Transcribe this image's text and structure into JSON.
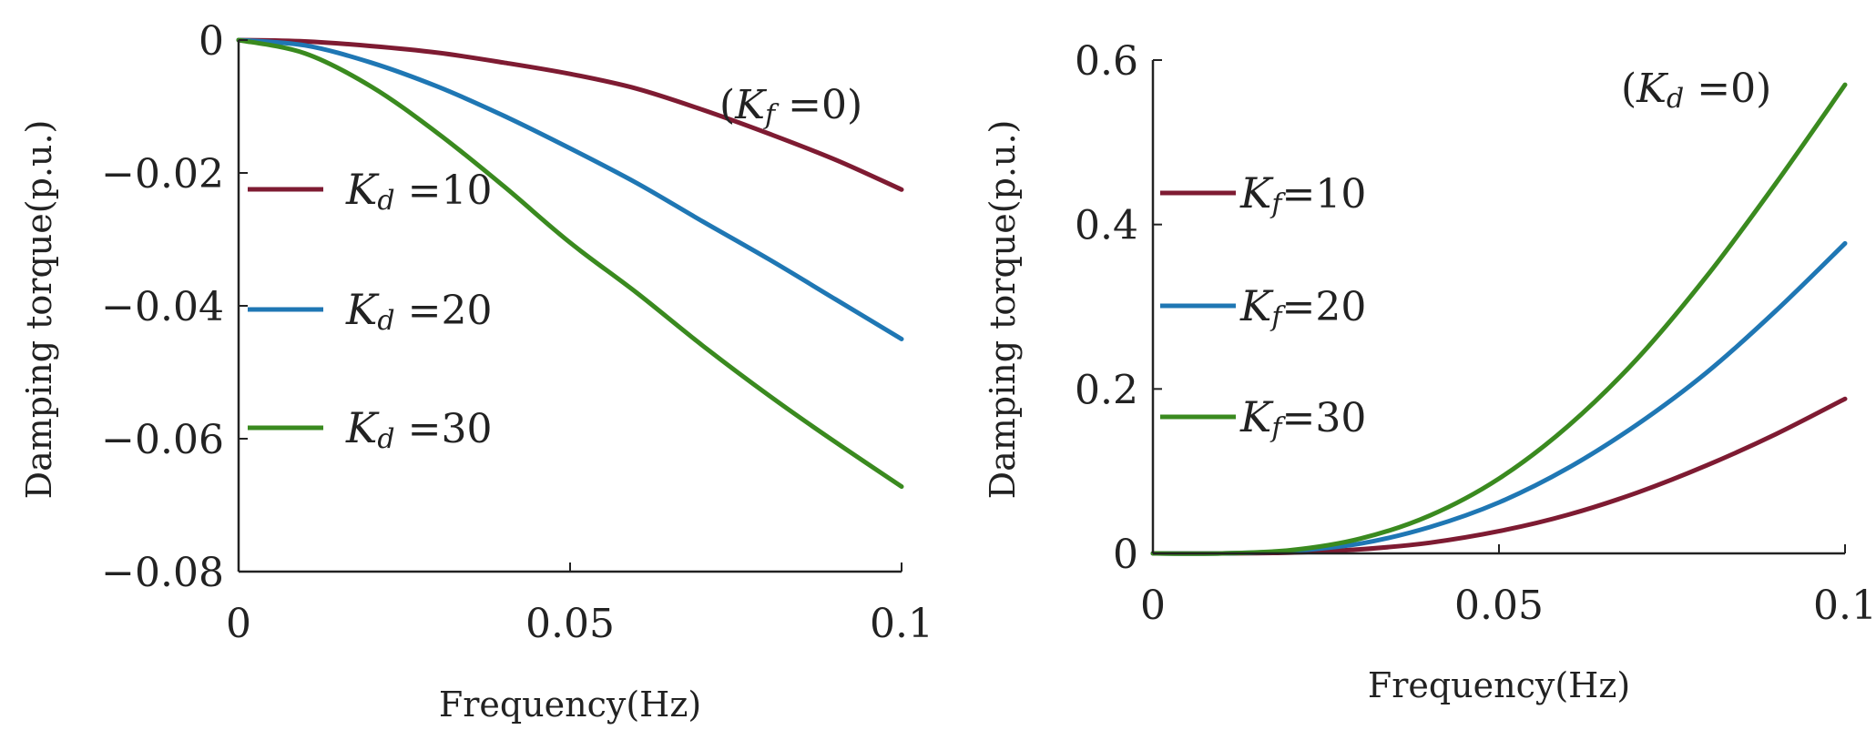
{
  "chart_data": [
    {
      "type": "line",
      "xlabel": "Frequency(Hz)",
      "ylabel": "Damping torque(p.u.)",
      "xlim": [
        0,
        0.1
      ],
      "ylim": [
        -0.08,
        0
      ],
      "xticks": [
        0,
        0.05,
        0.1
      ],
      "xtick_labels": [
        "0",
        "0.05",
        "0.1"
      ],
      "yticks": [
        0,
        -0.02,
        -0.04,
        -0.06,
        -0.08
      ],
      "ytick_labels": [
        "0",
        "−0.02",
        "−0.04",
        "−0.06",
        "−0.08"
      ],
      "annotation": {
        "open": "(",
        "var": "K",
        "sub": "f",
        "rest": " =0)"
      },
      "legend": {
        "var": "K",
        "sub": "d"
      },
      "x": [
        0,
        0.01,
        0.02,
        0.03,
        0.04,
        0.05,
        0.06,
        0.07,
        0.08,
        0.09,
        0.1
      ],
      "series": [
        {
          "name": "Kd =10",
          "label_rest": " =10",
          "color": "#7e1b32",
          "values": [
            0,
            -0.0002,
            -0.0009,
            -0.0019,
            -0.0034,
            -0.0051,
            -0.0073,
            -0.0105,
            -0.0141,
            -0.018,
            -0.0225
          ]
        },
        {
          "name": "Kd =20",
          "label_rest": " =20",
          "color": "#1f77b4",
          "values": [
            0,
            -0.0008,
            -0.0034,
            -0.007,
            -0.0114,
            -0.0163,
            -0.0215,
            -0.0273,
            -0.033,
            -0.039,
            -0.045
          ]
        },
        {
          "name": "Kd =30",
          "label_rest": " =30",
          "color": "#3a8a1f",
          "values": [
            0,
            -0.002,
            -0.007,
            -0.014,
            -0.022,
            -0.0305,
            -0.038,
            -0.046,
            -0.0535,
            -0.0605,
            -0.0672
          ]
        }
      ]
    },
    {
      "type": "line",
      "xlabel": "Frequency(Hz)",
      "ylabel": "Damping torque(p.u.)",
      "xlim": [
        0,
        0.1
      ],
      "ylim": [
        0,
        0.6
      ],
      "xticks": [
        0,
        0.05,
        0.1
      ],
      "xtick_labels": [
        "0",
        "0.05",
        "0.1"
      ],
      "yticks": [
        0,
        0.2,
        0.4,
        0.6
      ],
      "ytick_labels": [
        "0",
        "0.2",
        "0.4",
        "0.6"
      ],
      "annotation": {
        "open": "(",
        "var": "K",
        "sub": "d",
        "rest": " =0)"
      },
      "legend": {
        "var": "K",
        "sub": "f"
      },
      "x": [
        0,
        0.01,
        0.02,
        0.03,
        0.04,
        0.05,
        0.06,
        0.07,
        0.08,
        0.09,
        0.1
      ],
      "series": [
        {
          "name": "Kf =10",
          "label_rest": "=10",
          "color": "#7e1b32",
          "values": [
            0,
            0,
            0.001,
            0.005,
            0.013,
            0.027,
            0.047,
            0.074,
            0.107,
            0.145,
            0.188
          ]
        },
        {
          "name": "Kf =20",
          "label_rest": "=20",
          "color": "#1f77b4",
          "values": [
            0,
            0,
            0.003,
            0.012,
            0.032,
            0.062,
            0.104,
            0.157,
            0.22,
            0.295,
            0.377
          ]
        },
        {
          "name": "Kf =30",
          "label_rest": "=30",
          "color": "#3a8a1f",
          "values": [
            0,
            0,
            0.004,
            0.018,
            0.046,
            0.091,
            0.155,
            0.237,
            0.337,
            0.45,
            0.57
          ]
        }
      ]
    }
  ]
}
